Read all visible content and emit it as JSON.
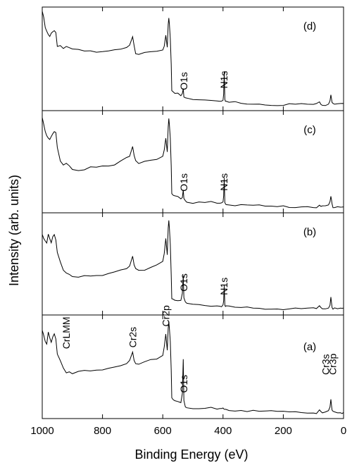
{
  "chart_data": {
    "type": "line",
    "title": "",
    "xlabel": "Binding Energy (eV)",
    "ylabel": "Intensity (arb. units)",
    "xlim": [
      1000,
      0
    ],
    "x_reversed": true,
    "x_ticks": [
      1000,
      800,
      600,
      400,
      200,
      0
    ],
    "x_tick_labels": [
      "1000",
      "800",
      "600",
      "400",
      "200",
      "0"
    ],
    "grid": false,
    "legend": "none",
    "line_color": "#000000",
    "panels": [
      {
        "label": "(d)",
        "peak_labels": [
          "O1s",
          "N1s"
        ],
        "series": {
          "x": [
            1000,
            995,
            990,
            985,
            980,
            975,
            970,
            965,
            960,
            955,
            950,
            940,
            930,
            920,
            910,
            900,
            880,
            860,
            840,
            820,
            800,
            780,
            760,
            740,
            720,
            710,
            700,
            695,
            690,
            680,
            660,
            640,
            620,
            600,
            595,
            590,
            585,
            582,
            580,
            578,
            575,
            572,
            570,
            565,
            560,
            550,
            540,
            535,
            532,
            530,
            525,
            520,
            500,
            480,
            460,
            440,
            420,
            410,
            405,
            400,
            398,
            396,
            394,
            392,
            390,
            380,
            360,
            340,
            320,
            300,
            280,
            260,
            240,
            220,
            200,
            180,
            160,
            140,
            120,
            100,
            90,
            80,
            75,
            70,
            60,
            50,
            45,
            42,
            40,
            38,
            35,
            30,
            20,
            10,
            5,
            0
          ],
          "y": [
            0.96,
            0.89,
            0.8,
            0.76,
            0.73,
            0.71,
            0.74,
            0.76,
            0.78,
            0.76,
            0.62,
            0.63,
            0.61,
            0.62,
            0.61,
            0.59,
            0.58,
            0.57,
            0.57,
            0.56,
            0.56,
            0.57,
            0.58,
            0.6,
            0.62,
            0.64,
            0.72,
            0.64,
            0.56,
            0.55,
            0.55,
            0.56,
            0.57,
            0.58,
            0.62,
            0.72,
            0.6,
            0.82,
            0.9,
            0.84,
            0.7,
            0.45,
            0.2,
            0.19,
            0.17,
            0.16,
            0.14,
            0.16,
            0.21,
            0.13,
            0.12,
            0.12,
            0.11,
            0.11,
            0.11,
            0.1,
            0.1,
            0.1,
            0.1,
            0.11,
            0.16,
            0.38,
            0.1,
            0.09,
            0.09,
            0.08,
            0.08,
            0.08,
            0.07,
            0.07,
            0.07,
            0.06,
            0.06,
            0.06,
            0.06,
            0.06,
            0.06,
            0.06,
            0.06,
            0.06,
            0.06,
            0.08,
            0.07,
            0.06,
            0.06,
            0.07,
            0.1,
            0.16,
            0.12,
            0.08,
            0.06,
            0.06,
            0.06,
            0.06,
            0.06,
            0.06
          ]
        }
      },
      {
        "label": "(c)",
        "peak_labels": [
          "O1s",
          "N1s"
        ],
        "series": {
          "x": [
            1000,
            995,
            990,
            985,
            980,
            975,
            970,
            965,
            960,
            955,
            950,
            940,
            930,
            920,
            910,
            900,
            880,
            860,
            840,
            820,
            800,
            780,
            760,
            740,
            720,
            710,
            700,
            695,
            690,
            680,
            660,
            640,
            620,
            600,
            595,
            590,
            585,
            582,
            580,
            578,
            575,
            572,
            570,
            565,
            560,
            550,
            540,
            535,
            532,
            530,
            525,
            520,
            500,
            480,
            460,
            440,
            420,
            410,
            405,
            400,
            398,
            396,
            394,
            392,
            390,
            380,
            360,
            340,
            320,
            300,
            280,
            260,
            240,
            220,
            200,
            180,
            160,
            140,
            120,
            100,
            90,
            80,
            75,
            70,
            60,
            50,
            45,
            42,
            40,
            38,
            35,
            30,
            20,
            10,
            5,
            0
          ],
          "y": [
            0.93,
            0.87,
            0.8,
            0.76,
            0.74,
            0.72,
            0.75,
            0.78,
            0.8,
            0.78,
            0.64,
            0.5,
            0.46,
            0.48,
            0.45,
            0.42,
            0.42,
            0.43,
            0.45,
            0.45,
            0.46,
            0.46,
            0.48,
            0.5,
            0.53,
            0.55,
            0.64,
            0.56,
            0.5,
            0.48,
            0.5,
            0.52,
            0.53,
            0.56,
            0.62,
            0.74,
            0.6,
            0.84,
            0.92,
            0.86,
            0.72,
            0.45,
            0.18,
            0.17,
            0.16,
            0.15,
            0.14,
            0.16,
            0.23,
            0.14,
            0.12,
            0.11,
            0.1,
            0.1,
            0.1,
            0.1,
            0.09,
            0.09,
            0.09,
            0.1,
            0.16,
            0.35,
            0.1,
            0.09,
            0.09,
            0.08,
            0.08,
            0.08,
            0.07,
            0.07,
            0.07,
            0.06,
            0.06,
            0.06,
            0.06,
            0.06,
            0.06,
            0.06,
            0.06,
            0.06,
            0.06,
            0.08,
            0.07,
            0.06,
            0.06,
            0.07,
            0.1,
            0.16,
            0.12,
            0.08,
            0.06,
            0.06,
            0.06,
            0.06,
            0.06,
            0.06
          ]
        }
      },
      {
        "label": "(b)",
        "peak_labels": [
          "O1s",
          "N1s"
        ],
        "series": {
          "x": [
            1000,
            995,
            990,
            985,
            980,
            975,
            970,
            965,
            960,
            955,
            950,
            940,
            930,
            920,
            910,
            900,
            880,
            860,
            840,
            820,
            800,
            780,
            760,
            740,
            720,
            710,
            700,
            695,
            690,
            680,
            660,
            640,
            620,
            600,
            595,
            590,
            585,
            582,
            580,
            578,
            575,
            572,
            570,
            565,
            560,
            550,
            540,
            535,
            532,
            530,
            525,
            520,
            500,
            480,
            460,
            440,
            420,
            410,
            405,
            400,
            398,
            396,
            394,
            392,
            390,
            380,
            360,
            340,
            320,
            300,
            280,
            260,
            240,
            220,
            200,
            180,
            160,
            140,
            120,
            100,
            90,
            80,
            75,
            70,
            60,
            50,
            45,
            42,
            40,
            38,
            35,
            30,
            20,
            10,
            5,
            0
          ],
          "y": [
            0.8,
            0.76,
            0.72,
            0.7,
            0.78,
            0.74,
            0.7,
            0.76,
            0.78,
            0.74,
            0.62,
            0.52,
            0.44,
            0.42,
            0.4,
            0.38,
            0.37,
            0.38,
            0.37,
            0.38,
            0.38,
            0.4,
            0.42,
            0.44,
            0.46,
            0.48,
            0.58,
            0.5,
            0.46,
            0.44,
            0.45,
            0.47,
            0.49,
            0.52,
            0.6,
            0.74,
            0.58,
            0.84,
            0.92,
            0.86,
            0.7,
            0.4,
            0.17,
            0.16,
            0.15,
            0.14,
            0.14,
            0.2,
            0.38,
            0.16,
            0.12,
            0.11,
            0.1,
            0.1,
            0.1,
            0.09,
            0.09,
            0.09,
            0.09,
            0.1,
            0.14,
            0.28,
            0.09,
            0.08,
            0.08,
            0.08,
            0.07,
            0.07,
            0.07,
            0.07,
            0.07,
            0.06,
            0.06,
            0.06,
            0.06,
            0.06,
            0.06,
            0.06,
            0.06,
            0.06,
            0.06,
            0.08,
            0.07,
            0.06,
            0.06,
            0.07,
            0.1,
            0.18,
            0.12,
            0.08,
            0.06,
            0.06,
            0.06,
            0.06,
            0.06,
            0.06
          ]
        }
      },
      {
        "label": "(a)",
        "peak_labels": [
          "CrLMM",
          "Cr2s",
          "Cr2p",
          "O1s",
          "Cr3s",
          "Cr3p"
        ],
        "series": {
          "x": [
            1000,
            995,
            990,
            985,
            980,
            975,
            970,
            965,
            960,
            955,
            950,
            940,
            930,
            920,
            910,
            900,
            880,
            860,
            840,
            820,
            800,
            780,
            760,
            740,
            720,
            710,
            700,
            695,
            690,
            680,
            660,
            640,
            620,
            600,
            595,
            590,
            585,
            582,
            580,
            578,
            575,
            572,
            570,
            565,
            560,
            550,
            540,
            535,
            532,
            530,
            525,
            520,
            500,
            480,
            460,
            440,
            420,
            410,
            405,
            400,
            398,
            396,
            394,
            392,
            390,
            380,
            360,
            340,
            320,
            300,
            280,
            260,
            240,
            220,
            200,
            180,
            160,
            140,
            120,
            100,
            90,
            80,
            75,
            70,
            60,
            50,
            45,
            42,
            40,
            38,
            35,
            30,
            20,
            10,
            5,
            0
          ],
          "y": [
            0.85,
            0.8,
            0.74,
            0.72,
            0.84,
            0.78,
            0.74,
            0.8,
            0.82,
            0.78,
            0.62,
            0.55,
            0.48,
            0.44,
            0.45,
            0.43,
            0.45,
            0.46,
            0.47,
            0.48,
            0.48,
            0.49,
            0.5,
            0.52,
            0.54,
            0.56,
            0.63,
            0.56,
            0.52,
            0.52,
            0.54,
            0.56,
            0.58,
            0.62,
            0.7,
            0.82,
            0.66,
            0.88,
            0.94,
            0.88,
            0.74,
            0.46,
            0.2,
            0.18,
            0.17,
            0.16,
            0.15,
            0.25,
            0.58,
            0.18,
            0.12,
            0.11,
            0.1,
            0.1,
            0.1,
            0.1,
            0.09,
            0.09,
            0.09,
            0.09,
            0.09,
            0.09,
            0.09,
            0.09,
            0.09,
            0.08,
            0.08,
            0.08,
            0.07,
            0.07,
            0.07,
            0.07,
            0.07,
            0.06,
            0.06,
            0.06,
            0.06,
            0.06,
            0.06,
            0.06,
            0.06,
            0.09,
            0.07,
            0.06,
            0.06,
            0.07,
            0.1,
            0.18,
            0.12,
            0.08,
            0.06,
            0.06,
            0.06,
            0.06,
            0.06,
            0.06
          ]
        }
      }
    ],
    "peak_label_positions": {
      "CrLMM": 920,
      "Cr2s": 700,
      "Cr2p": 590,
      "O1s": 530,
      "N1s": 397,
      "Cr3s": 60,
      "Cr3p": 36
    }
  }
}
